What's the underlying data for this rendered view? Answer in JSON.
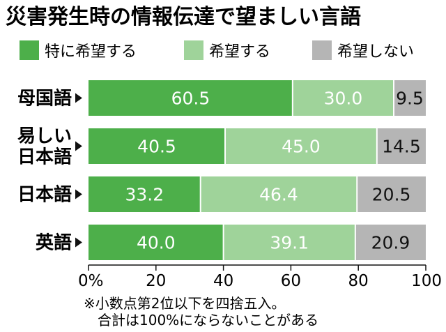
{
  "chart_data": {
    "type": "bar",
    "orientation": "horizontal",
    "stacked": true,
    "title": "災害発生時の情報伝達で望ましい言語",
    "categories": [
      [
        "母国語"
      ],
      [
        "易しい",
        "日本語"
      ],
      [
        "日本語"
      ],
      [
        "英語"
      ]
    ],
    "series": [
      {
        "name": "特に希望する",
        "color": "#4daf4a",
        "text_color": "#ffffff",
        "values": [
          60.5,
          40.5,
          33.2,
          40.0
        ],
        "labels": [
          "60.5",
          "40.5",
          "33.2",
          "40.0"
        ]
      },
      {
        "name": "希望する",
        "color": "#9fd39a",
        "text_color": "#ffffff",
        "values": [
          30.0,
          45.0,
          46.4,
          39.1
        ],
        "labels": [
          "30.0",
          "45.0",
          "46.4",
          "39.1"
        ]
      },
      {
        "name": "希望しない",
        "color": "#b5b5b5",
        "text_color": "#111111",
        "values": [
          9.5,
          14.5,
          20.5,
          20.9
        ],
        "labels": [
          "9.5",
          "14.5",
          "20.5",
          "20.9"
        ]
      }
    ],
    "xlim": [
      0,
      100
    ],
    "xticks": [
      0,
      20,
      40,
      60,
      80,
      100
    ],
    "xtick_labels": [
      "0%",
      "20",
      "40",
      "60",
      "80",
      "100"
    ],
    "grid": false,
    "legend_position": "top",
    "notes": [
      "※小数点第2位以下を四捨五入。",
      "合計は100%にならないことがある"
    ]
  }
}
